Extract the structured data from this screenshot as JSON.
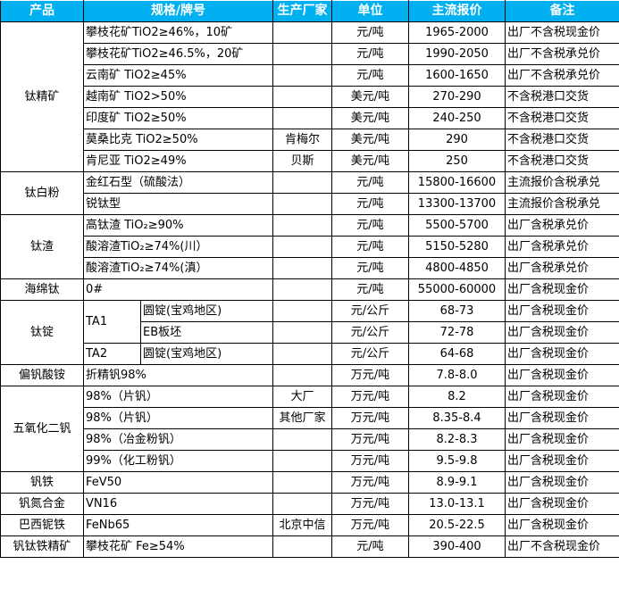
{
  "header": {
    "product": "产品",
    "spec": "规格/牌号",
    "maker": "生产厂家",
    "unit": "单位",
    "price": "主流报价",
    "note": "备注"
  },
  "colors": {
    "header_bg": "#00b0f0",
    "header_text": "#ffffff"
  },
  "groups": [
    {
      "product": "钛精矿",
      "rows": [
        {
          "spec": "攀枝花矿TiO2≥46%，10矿",
          "maker": "",
          "unit": "元/吨",
          "price": "1965-2000",
          "note": "出厂不含税现金价"
        },
        {
          "spec": "攀枝花矿TiO2≥46.5%，20矿",
          "maker": "",
          "unit": "元/吨",
          "price": "1990-2050",
          "note": "出厂不含税承兑价"
        },
        {
          "spec": "云南矿 TiO2≥45%",
          "maker": "",
          "unit": "元/吨",
          "price": "1600-1650",
          "note": "出厂不含税承兑价"
        },
        {
          "spec": "越南矿 TiO2>50%",
          "maker": "",
          "unit": "美元/吨",
          "price": "270-290",
          "note": "不含税港口交货"
        },
        {
          "spec": "印度矿 TiO2≥50%",
          "maker": "",
          "unit": "美元/吨",
          "price": "240-250",
          "note": "不含税港口交货"
        },
        {
          "spec": "莫桑比克 TiO2≥50%",
          "maker": "肯梅尔",
          "unit": "美元/吨",
          "price": "290",
          "note": "不含税港口交货"
        },
        {
          "spec": "肯尼亚 TiO2≥49%",
          "maker": "贝斯",
          "unit": "美元/吨",
          "price": "250",
          "note": "不含税港口交货"
        }
      ]
    },
    {
      "product": "钛白粉",
      "rows": [
        {
          "spec": "金红石型（硫酸法）",
          "maker": "",
          "unit": "元/吨",
          "price": "15800-16600",
          "note": "主流报价含税承兑"
        },
        {
          "spec": "锐钛型",
          "maker": "",
          "unit": "元/吨",
          "price": "13300-13700",
          "note": "主流报价含税承兑"
        }
      ]
    },
    {
      "product": "钛渣",
      "rows": [
        {
          "spec": "高钛渣 TiO₂≥90%",
          "maker": "",
          "unit": "元/吨",
          "price": "5500-5700",
          "note": "出厂含税承兑价"
        },
        {
          "spec": "酸溶渣TiO₂≥74%(川）",
          "maker": "",
          "unit": "元/吨",
          "price": "5150-5280",
          "note": "出厂含税承兑价"
        },
        {
          "spec": "酸溶渣TiO₂≥74%(滇）",
          "maker": "",
          "unit": "元/吨",
          "price": "4800-4850",
          "note": "出厂含税承兑价"
        }
      ]
    },
    {
      "product": "海绵钛",
      "rows": [
        {
          "spec": "0#",
          "maker": "",
          "unit": "元/吨",
          "price": "55000-60000",
          "note": "出厂含税现金价"
        }
      ]
    },
    {
      "product": "钛锭",
      "subgroups": [
        {
          "grade": "TA1",
          "rows": [
            {
              "spec": "圆锭(宝鸡地区)",
              "maker": "",
              "unit": "元/公斤",
              "price": "68-73",
              "note": "出厂含税现金价"
            },
            {
              "spec": "EB板坯",
              "maker": "",
              "unit": "元/公斤",
              "price": "72-78",
              "note": "出厂含税现金价"
            }
          ]
        },
        {
          "grade": "TA2",
          "rows": [
            {
              "spec": "圆锭(宝鸡地区)",
              "maker": "",
              "unit": "元/公斤",
              "price": "64-68",
              "note": "出厂含税现金价"
            }
          ]
        }
      ]
    },
    {
      "product": "偏钒酸铵",
      "rows": [
        {
          "spec": "折精钒98%",
          "maker": "",
          "unit": "万元/吨",
          "price": "7.8-8.0",
          "note": "出厂含税现金价"
        }
      ]
    },
    {
      "product": "五氧化二钒",
      "rows": [
        {
          "spec": "98%（片钒）",
          "maker": "大厂",
          "unit": "万元/吨",
          "price": "8.2",
          "note": "出厂含税现金价"
        },
        {
          "spec": "98%（片钒）",
          "maker": "其他厂家",
          "unit": "万元/吨",
          "price": "8.35-8.4",
          "note": "出厂含税现金价"
        },
        {
          "spec": "98%（冶金粉钒）",
          "maker": "",
          "unit": "万元/吨",
          "price": "8.2-8.3",
          "note": "出厂含税现金价"
        },
        {
          "spec": "99%（化工粉钒）",
          "maker": "",
          "unit": "万元/吨",
          "price": "9.5-9.8",
          "note": "出厂含税现金价"
        }
      ]
    },
    {
      "product": "钒铁",
      "rows": [
        {
          "spec": "FeV50",
          "maker": "",
          "unit": "万元/吨",
          "price": "8.9-9.1",
          "note": "出厂含税现金价"
        }
      ]
    },
    {
      "product": "钒氮合金",
      "rows": [
        {
          "spec": "VN16",
          "maker": "",
          "unit": "万元/吨",
          "price": "13.0-13.1",
          "note": "出厂含税现金价"
        }
      ]
    },
    {
      "product": "巴西铌铁",
      "rows": [
        {
          "spec": "FeNb65",
          "maker": "北京中信",
          "unit": "万元/吨",
          "price": "20.5-22.5",
          "note": "出厂含税现金价"
        }
      ]
    },
    {
      "product": "钒钛铁精矿",
      "rows": [
        {
          "spec": "攀枝花矿 Fe≥54%",
          "maker": "",
          "unit": "元/吨",
          "price": "390-400",
          "note": "出厂不含税现金价"
        }
      ]
    }
  ]
}
